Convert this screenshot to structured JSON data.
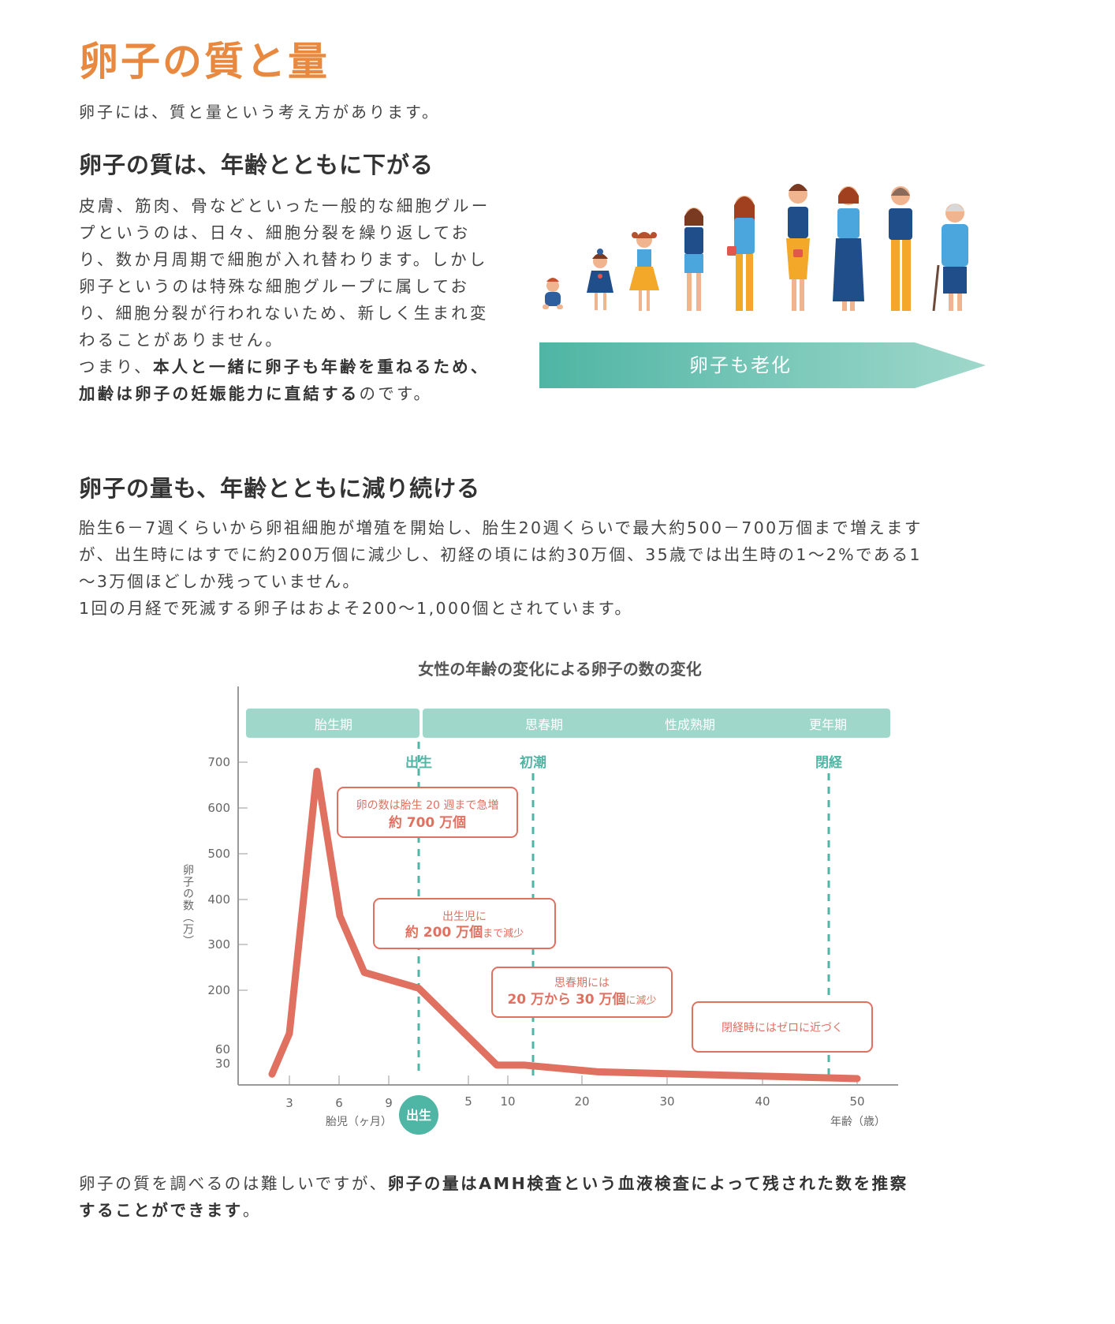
{
  "header": {
    "title": "卵子の質と量",
    "lead": "卵子には、質と量という考え方があります。"
  },
  "quality": {
    "heading": "卵子の質は、年齢とともに下がる",
    "lines": [
      "皮膚、筋肉、骨などといった一般的な細胞グルー",
      "プというのは、日々、細胞分裂を繰り返してお",
      "り、数か月周期で細胞が入れ替わります。しかし",
      "卵子というのは特殊な細胞グループに属してお",
      "り、細胞分裂が行われないため、新しく生まれ変",
      "わることがありません。"
    ],
    "conclusion_pre": "つまり、",
    "conclusion_bold_1": "本人と一緒に卵子も年齢を重ねるため、",
    "conclusion_bold_2": "加齢は卵子の妊娠能力に直結する",
    "conclusion_post": "のです。",
    "arrow_label": "卵子も老化"
  },
  "quantity": {
    "heading": "卵子の量も、年齢とともに減り続ける",
    "lines": [
      "胎生6－7週くらいから卵祖細胞が増殖を開始し、胎生20週くらいで最大約500－700万個まで増えます",
      "が、出生時にはすでに約200万個に減少し、初経の頃には約30万個、35歳では出生時の1～2%である1",
      "～3万個ほどしか残っていません。",
      "1回の月経で死滅する卵子はおよそ200～1,000個とされています。"
    ]
  },
  "chart_data": {
    "type": "line",
    "title": "女性の年齢の変化による卵子の数の変化",
    "ylabel": "卵子の数（万）",
    "y_ticks": [
      "700",
      "600",
      "500",
      "400",
      "300",
      "200",
      "60",
      "30"
    ],
    "x_ticks_fetal": [
      "3",
      "6",
      "9"
    ],
    "x_ticks_age": [
      "5",
      "10",
      "20",
      "30",
      "40",
      "50"
    ],
    "x_label_fetal": "胎児（ヶ月）",
    "x_label_age": "年齢（歳）",
    "birth_badge": "出生",
    "phases": [
      "胎生期",
      "思春期",
      "性成熟期",
      "更年期"
    ],
    "markers": [
      "出生",
      "初潮",
      "閉経"
    ],
    "series": [
      {
        "points": [
          {
            "x": "胎児2ヶ月",
            "y": 10
          },
          {
            "x": "胎児3ヶ月",
            "y": 100
          },
          {
            "x": "胎児5ヶ月",
            "y": 680
          },
          {
            "x": "胎児6ヶ月",
            "y": 360
          },
          {
            "x": "胎児7ヶ月",
            "y": 235
          },
          {
            "x": "出生",
            "y": 200
          },
          {
            "x": "9歳",
            "y": 30
          },
          {
            "x": "11歳",
            "y": 30
          },
          {
            "x": "20歳",
            "y": 15
          },
          {
            "x": "50歳",
            "y": 0
          }
        ]
      }
    ],
    "annotations": {
      "a1_line1": "卵の数は胎生 20 週まで急増",
      "a1_line2": "約 700 万個",
      "a2_line1": "出生児に",
      "a2_line2_bold": "約 200 万個",
      "a2_line2_small": "まで減少",
      "a3_line1": "思春期には",
      "a3_line2_bold": "20 万から 30 万個",
      "a3_line2_small": "に減少",
      "a4_line1": "閉経時にはゼロに近づく"
    },
    "colors": {
      "line": "#e07060",
      "teal": "#4fb5a4",
      "band": "#9fd8cb",
      "axis": "#9a9a9a"
    }
  },
  "footer": {
    "pre": "卵子の質を調べるのは難しいですが、",
    "bold": "卵子の量はAMH検査という血液検査によって残された数を推察",
    "bold_line2": "することができます",
    "post": "。"
  }
}
